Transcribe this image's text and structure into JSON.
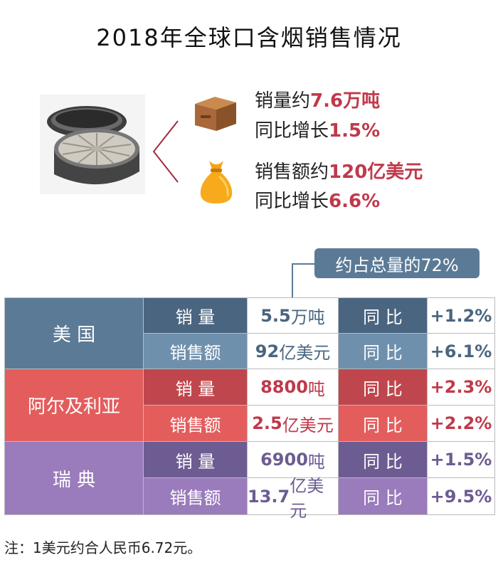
{
  "title": "2018年全球口含烟销售情况",
  "summary": {
    "volume": {
      "label": "销量约",
      "value": "7.6万吨",
      "growth_label": "同比增长",
      "growth": "1.5%"
    },
    "sales": {
      "label": "销售额约",
      "value": "120亿美元",
      "growth_label": "同比增长",
      "growth": "6.6%"
    }
  },
  "callout": "约占总量的72%",
  "rows": [
    {
      "country": "美  国",
      "lines": [
        {
          "metric": "销  量",
          "value_num": "5.5",
          "value_unit": "万吨",
          "yoy_label": "同  比",
          "yoy": "+1.2%"
        },
        {
          "metric": "销售额",
          "value_num": "92",
          "value_unit": "亿美元",
          "yoy_label": "同  比",
          "yoy": "+6.1%"
        }
      ]
    },
    {
      "country": "阿尔及利亚",
      "lines": [
        {
          "metric": "销  量",
          "value_num": "8800",
          "value_unit": "吨",
          "yoy_label": "同  比",
          "yoy": "+2.3%"
        },
        {
          "metric": "销售额",
          "value_num": "2.5",
          "value_unit": "亿美元",
          "yoy_label": "同  比",
          "yoy": "+2.2%"
        }
      ]
    },
    {
      "country": "瑞  典",
      "lines": [
        {
          "metric": "销  量",
          "value_num": "6900",
          "value_unit": "吨",
          "yoy_label": "同  比",
          "yoy": "+1.5%"
        },
        {
          "metric": "销售额",
          "value_num": "13.7",
          "value_unit": "亿美元",
          "yoy_label": "同  比",
          "yoy": "+9.5%"
        }
      ]
    }
  ],
  "colors": {
    "us_dark": "#5b7a96",
    "us_light": "#6f90ad",
    "dz_dark": "#c0464d",
    "dz_light": "#e35d5d",
    "se_dark": "#6d5c92",
    "se_light": "#9a7bbc",
    "highlight": "#c0394b"
  },
  "icons": {
    "box": "cardboard-box-icon",
    "bag": "money-bag-icon",
    "tin": "snus-tin-image"
  },
  "note": "注：1美元约合人民币6.72元。"
}
